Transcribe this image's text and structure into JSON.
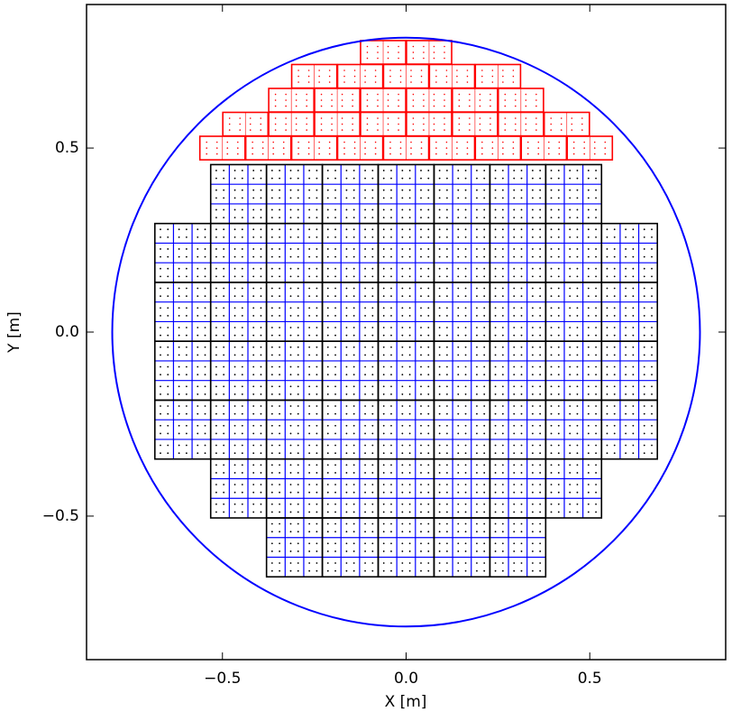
{
  "chart_data": {
    "type": "focal-plane",
    "xlabel": "X [m]",
    "ylabel": "Y [m]",
    "xlim": [
      -0.87,
      0.87
    ],
    "ylim": [
      -0.89,
      0.89
    ],
    "xticks": [
      {
        "value": -0.5,
        "label": "−0.5"
      },
      {
        "value": 0,
        "label": "0.0"
      },
      {
        "value": 0.5,
        "label": "0.5"
      }
    ],
    "yticks": [
      {
        "value": -0.5,
        "label": "−0.5"
      },
      {
        "value": 0,
        "label": "0.0"
      },
      {
        "value": 0.5,
        "label": "0.5"
      }
    ],
    "boundary": {
      "radius": 0.8,
      "color": "#0000ff"
    },
    "modules": {
      "color": "#000000",
      "grid_color": "#0000ff",
      "width": 0.152,
      "height": 0.16,
      "columns": [
        {
          "x": -0.608,
          "y": [
            0.215,
            0.055,
            -0.105,
            -0.265
          ]
        },
        {
          "x": -0.456,
          "y": [
            0.375,
            0.215,
            0.055,
            -0.105,
            -0.265,
            -0.425
          ]
        },
        {
          "x": -0.304,
          "y": [
            0.375,
            0.215,
            0.055,
            -0.105,
            -0.265,
            -0.425,
            -0.585
          ]
        },
        {
          "x": -0.152,
          "y": [
            0.375,
            0.215,
            0.055,
            -0.105,
            -0.265,
            -0.425,
            -0.585
          ]
        },
        {
          "x": 0,
          "y": [
            0.375,
            0.215,
            0.055,
            -0.105,
            -0.265,
            -0.425,
            -0.585
          ]
        },
        {
          "x": 0.152,
          "y": [
            0.375,
            0.215,
            0.055,
            -0.105,
            -0.265,
            -0.425,
            -0.585
          ]
        },
        {
          "x": 0.304,
          "y": [
            0.375,
            0.215,
            0.055,
            -0.105,
            -0.265,
            -0.425,
            -0.585
          ]
        },
        {
          "x": 0.456,
          "y": [
            0.375,
            0.215,
            0.055,
            -0.105,
            -0.265,
            -0.425
          ]
        },
        {
          "x": 0.608,
          "y": [
            0.215,
            0.055,
            -0.105,
            -0.265
          ]
        }
      ]
    },
    "outer_modules": {
      "color": "#ff0000",
      "width": 0.123,
      "height": 0.064,
      "rows": [
        {
          "y": 0.5,
          "x": [
            -0.5,
            -0.375,
            -0.25,
            -0.125,
            0,
            0.125,
            0.25,
            0.375,
            0.5
          ]
        },
        {
          "y": 0.565,
          "x": [
            -0.4375,
            -0.3125,
            -0.1875,
            -0.0625,
            0.0625,
            0.1875,
            0.3125,
            0.4375
          ]
        },
        {
          "y": 0.63,
          "x": [
            -0.3125,
            -0.1875,
            -0.0625,
            0.0625,
            0.1875,
            0.3125
          ]
        },
        {
          "y": 0.695,
          "x": [
            -0.25,
            -0.125,
            0,
            0.125,
            0.25
          ]
        },
        {
          "y": 0.76,
          "x": [
            -0.0625,
            0.0625
          ]
        }
      ]
    }
  }
}
